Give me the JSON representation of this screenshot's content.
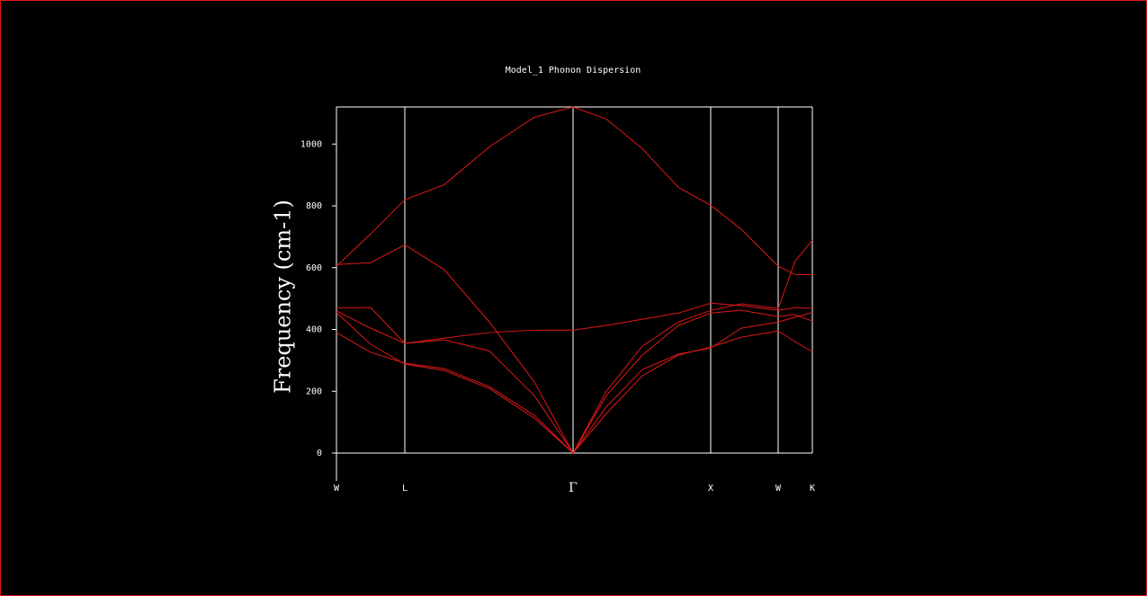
{
  "chart_data": {
    "type": "line",
    "title": "Model_1 Phonon Dispersion",
    "y_label": "Frequency (cm-1)",
    "x": [
      0,
      0.38,
      0.76,
      1.2,
      1.7,
      2.2,
      2.63,
      3.0,
      3.4,
      3.8,
      4.16,
      4.5,
      4.91,
      5.1,
      5.29
    ],
    "xlim": [
      0,
      5.29
    ],
    "xticks": [
      {
        "value": 0,
        "label": "W"
      },
      {
        "value": 0.76,
        "label": "L"
      },
      {
        "value": 2.63,
        "label": "Γ"
      },
      {
        "value": 4.16,
        "label": "X"
      },
      {
        "value": 4.91,
        "label": "W"
      },
      {
        "value": 5.29,
        "label": "K"
      }
    ],
    "ylim": [
      0,
      1120
    ],
    "yticks": [
      0,
      200,
      400,
      600,
      800,
      1000
    ],
    "grid": true,
    "series": [
      {
        "color": "#e01818",
        "values": [
          605,
          709,
          820,
          869,
          991,
          1087,
          1120,
          1081,
          985,
          860,
          802,
          724,
          605,
          578,
          577
        ]
      },
      {
        "color": "#e01818",
        "values": [
          610,
          616,
          674,
          593,
          424,
          230,
          0,
          200,
          346,
          424,
          462,
          483,
          468,
          622,
          689
        ]
      },
      {
        "color": "#e01818",
        "values": [
          470,
          471,
          355,
          372,
          390,
          398,
          398,
          413,
          433,
          453,
          485,
          477,
          462,
          471,
          468
        ]
      },
      {
        "color": "#e01818",
        "values": [
          460,
          404,
          355,
          366,
          331,
          186,
          0,
          186,
          317,
          413,
          453,
          462,
          442,
          448,
          427
        ]
      },
      {
        "color": "#e01818",
        "values": [
          455,
          352,
          288,
          267,
          209,
          113,
          0,
          128,
          250,
          317,
          343,
          375,
          395,
          360,
          328
        ]
      },
      {
        "color": "#e01818",
        "values": [
          390,
          326,
          291,
          273,
          215,
          122,
          0,
          150,
          270,
          320,
          340,
          404,
          424,
          440,
          455
        ]
      }
    ]
  }
}
